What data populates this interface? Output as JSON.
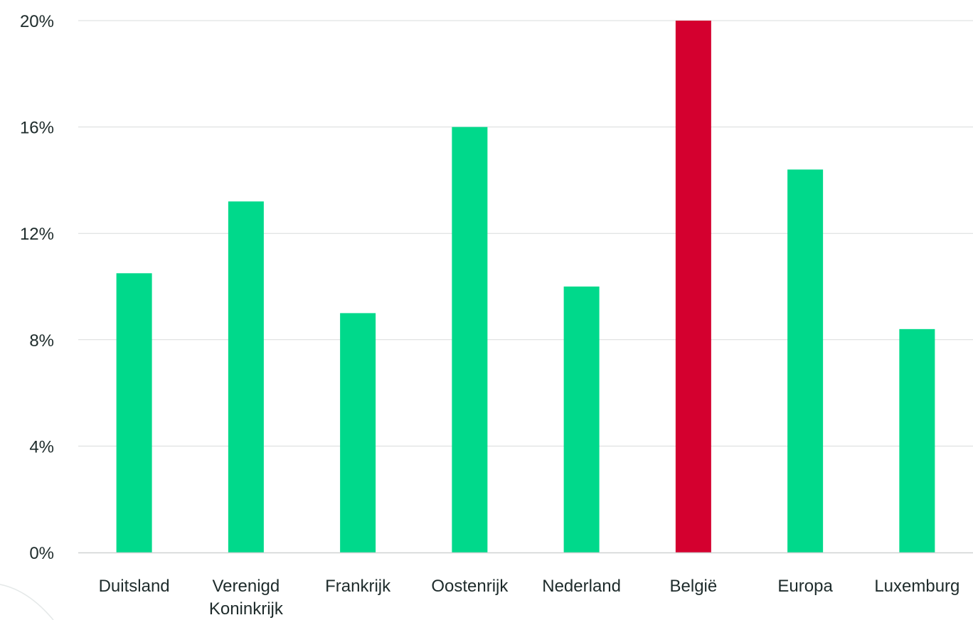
{
  "chart_data": {
    "type": "bar",
    "title": "",
    "xlabel": "",
    "ylabel": "",
    "ylim": [
      0,
      20
    ],
    "y_ticks": [
      "0%",
      "4%",
      "8%",
      "12%",
      "16%",
      "20%"
    ],
    "y_tick_values": [
      0,
      4,
      8,
      12,
      16,
      20
    ],
    "grid": true,
    "legend": "none",
    "categories": [
      [
        "Duitsland"
      ],
      [
        "Verenigd",
        "Koninkrijk"
      ],
      [
        "Frankrijk"
      ],
      [
        "Oostenrijk"
      ],
      [
        "Nederland"
      ],
      [
        "België"
      ],
      [
        "Europa"
      ],
      [
        "Luxemburg"
      ]
    ],
    "values": [
      10.5,
      13.2,
      9.0,
      16.0,
      10.0,
      20.0,
      14.4,
      8.4
    ],
    "bar_colors": [
      "#00d98b",
      "#00d98b",
      "#00d98b",
      "#00d98b",
      "#00d98b",
      "#d4002f",
      "#00d98b",
      "#00d98b"
    ],
    "colors": {
      "bar": "#00d98b",
      "highlight": "#d4002f",
      "grid": "#d9dcdc",
      "axis": "#cfd3d3",
      "text": "#1e2b2b"
    }
  }
}
